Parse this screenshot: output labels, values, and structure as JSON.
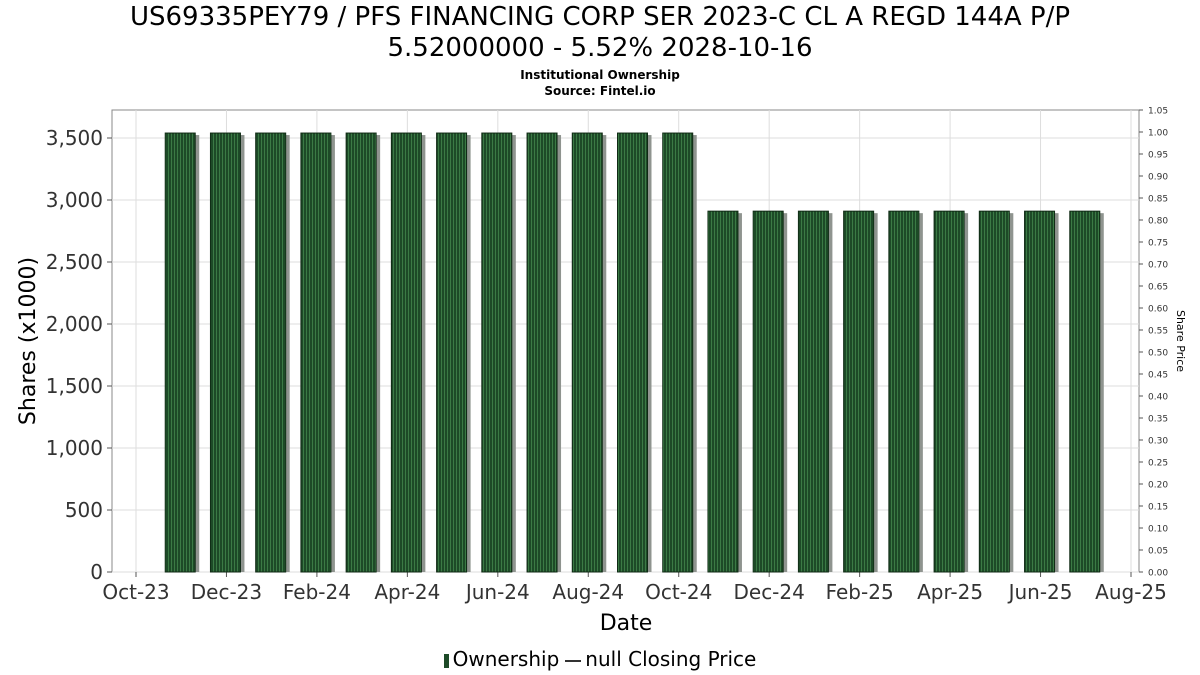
{
  "title_lines": [
    "US69335PEY79 / PFS FINANCING CORP SER 2023-C CL A REGD 144A P/P",
    "5.52000000 - 5.52% 2028-10-16"
  ],
  "subtitle_lines": [
    "Institutional Ownership",
    "Source: Fintel.io"
  ],
  "legend": {
    "ownership": "Ownership",
    "price": "null Closing Price"
  },
  "colors": {
    "bar": "#1d4a27",
    "bar_stripe": "#3b7a45",
    "bar_shadow": "#8f948f",
    "grid": "#dddddd"
  },
  "chart_data": {
    "type": "bar",
    "xlabel": "Date",
    "ylabel": "Shares (x1000)",
    "y2label": "Share Price",
    "ylim": [
      0,
      3500
    ],
    "y2lim": [
      0,
      1.05
    ],
    "yticks": [
      "0",
      "500",
      "1,000",
      "1,500",
      "2,000",
      "2,500",
      "3,000",
      "3,500"
    ],
    "yticks_values": [
      0,
      500,
      1000,
      1500,
      2000,
      2500,
      3000,
      3500
    ],
    "y2ticks": [
      "0.00",
      "0.05",
      "0.10",
      "0.15",
      "0.20",
      "0.25",
      "0.30",
      "0.35",
      "0.40",
      "0.45",
      "0.50",
      "0.55",
      "0.60",
      "0.65",
      "0.70",
      "0.75",
      "0.80",
      "0.85",
      "0.90",
      "0.95",
      "1.00",
      "1.05"
    ],
    "xticks": [
      "Oct-23",
      "Dec-23",
      "Feb-24",
      "Apr-24",
      "Jun-24",
      "Aug-24",
      "Oct-24",
      "Dec-24",
      "Feb-25",
      "Apr-25",
      "Jun-25",
      "Aug-25"
    ],
    "grid": true,
    "legend_position": "bottom",
    "series": [
      {
        "name": "Ownership",
        "x": [
          "2023-11",
          "2023-12",
          "2024-01",
          "2024-02",
          "2024-03",
          "2024-04",
          "2024-05",
          "2024-06",
          "2024-07",
          "2024-08",
          "2024-09",
          "2024-10",
          "2024-11",
          "2024-12",
          "2025-01",
          "2025-02",
          "2025-03",
          "2025-04",
          "2025-05",
          "2025-06",
          "2025-07"
        ],
        "values": [
          3540,
          3540,
          3540,
          3540,
          3540,
          3540,
          3540,
          3540,
          3540,
          3540,
          3540,
          3540,
          2910,
          2910,
          2910,
          2910,
          2910,
          2910,
          2910,
          2910,
          2910
        ]
      }
    ]
  }
}
